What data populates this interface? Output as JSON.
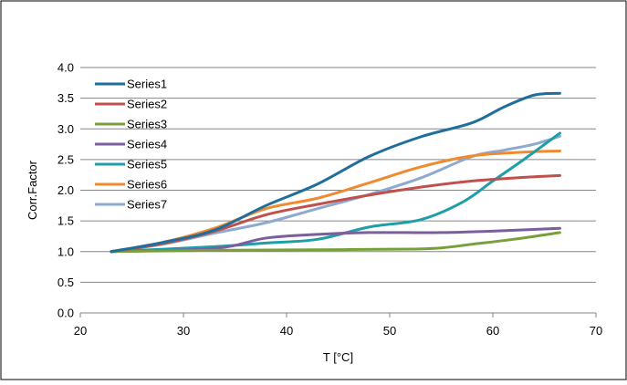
{
  "chart_data": {
    "type": "line",
    "title": "",
    "xlabel": "T [°C]",
    "ylabel": "Corr.Factor",
    "xlim": [
      20,
      70
    ],
    "ylim": [
      0.0,
      4.0
    ],
    "x_ticks": [
      20,
      30,
      40,
      50,
      60,
      70
    ],
    "y_ticks": [
      0.0,
      0.5,
      1.0,
      1.5,
      2.0,
      2.5,
      3.0,
      3.5,
      4.0
    ],
    "x_tick_labels": [
      "20",
      "30",
      "40",
      "50",
      "60",
      "70"
    ],
    "y_tick_labels": [
      "0.0",
      "0.5",
      "1.0",
      "1.5",
      "2.0",
      "2.5",
      "3.0",
      "3.5",
      "4.0"
    ],
    "grid": "horizontal",
    "legend_position": "top-left",
    "series": [
      {
        "name": "Series1",
        "color": "#1F6E9C",
        "points": [
          [
            23,
            1.0
          ],
          [
            28,
            1.15
          ],
          [
            33,
            1.35
          ],
          [
            38,
            1.75
          ],
          [
            43,
            2.1
          ],
          [
            48,
            2.55
          ],
          [
            53,
            2.87
          ],
          [
            58,
            3.1
          ],
          [
            61,
            3.35
          ],
          [
            64,
            3.55
          ],
          [
            66.5,
            3.58
          ]
        ]
      },
      {
        "name": "Series2",
        "color": "#C0504D",
        "points": [
          [
            23,
            1.0
          ],
          [
            28,
            1.13
          ],
          [
            33,
            1.33
          ],
          [
            38,
            1.6
          ],
          [
            43,
            1.77
          ],
          [
            48,
            1.92
          ],
          [
            53,
            2.05
          ],
          [
            58,
            2.15
          ],
          [
            63,
            2.21
          ],
          [
            66.5,
            2.24
          ]
        ]
      },
      {
        "name": "Series3",
        "color": "#77A03A",
        "points": [
          [
            23,
            1.0
          ],
          [
            33,
            1.02
          ],
          [
            43,
            1.03
          ],
          [
            52,
            1.04
          ],
          [
            55,
            1.06
          ],
          [
            58,
            1.12
          ],
          [
            62,
            1.2
          ],
          [
            66.5,
            1.31
          ]
        ]
      },
      {
        "name": "Series4",
        "color": "#7B5E9E",
        "points": [
          [
            23,
            1.0
          ],
          [
            33,
            1.05
          ],
          [
            38,
            1.22
          ],
          [
            43,
            1.28
          ],
          [
            48,
            1.31
          ],
          [
            55,
            1.31
          ],
          [
            61,
            1.34
          ],
          [
            66.5,
            1.38
          ]
        ]
      },
      {
        "name": "Series5",
        "color": "#1E9EA8",
        "points": [
          [
            23,
            1.0
          ],
          [
            33,
            1.08
          ],
          [
            38,
            1.14
          ],
          [
            43,
            1.2
          ],
          [
            48,
            1.4
          ],
          [
            53,
            1.52
          ],
          [
            57,
            1.8
          ],
          [
            60,
            2.15
          ],
          [
            63,
            2.5
          ],
          [
            66.5,
            2.93
          ]
        ]
      },
      {
        "name": "Series6",
        "color": "#F08A30",
        "points": [
          [
            23,
            1.0
          ],
          [
            28,
            1.15
          ],
          [
            33,
            1.38
          ],
          [
            38,
            1.7
          ],
          [
            43,
            1.87
          ],
          [
            48,
            2.12
          ],
          [
            53,
            2.38
          ],
          [
            58,
            2.56
          ],
          [
            63,
            2.62
          ],
          [
            66.5,
            2.64
          ]
        ]
      },
      {
        "name": "Series7",
        "color": "#8EA9CF",
        "points": [
          [
            23,
            1.0
          ],
          [
            28,
            1.12
          ],
          [
            33,
            1.3
          ],
          [
            38,
            1.47
          ],
          [
            43,
            1.7
          ],
          [
            48,
            1.93
          ],
          [
            53,
            2.2
          ],
          [
            58,
            2.55
          ],
          [
            61,
            2.65
          ],
          [
            64,
            2.75
          ],
          [
            66.5,
            2.88
          ]
        ]
      }
    ]
  }
}
